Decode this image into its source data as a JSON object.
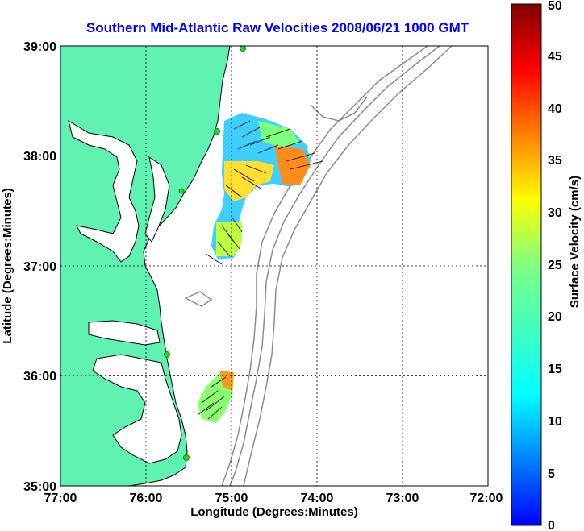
{
  "title": "Southern Mid-Atlantic Raw Velocities 2008/06/21 1000 GMT",
  "x_axis": {
    "label": "Longitude (Degrees:Minutes)",
    "ticks": [
      "77:00",
      "76:00",
      "75:00",
      "74:00",
      "73:00",
      "72:00"
    ],
    "range_deg": [
      -77,
      -72
    ]
  },
  "y_axis": {
    "label": "Latitude (Degrees:Minutes)",
    "ticks": [
      "39:00",
      "38:00",
      "37:00",
      "36:00",
      "35:00"
    ],
    "range_deg": [
      35,
      39
    ]
  },
  "colorbar": {
    "label": "Surface Velocity (cm/s)",
    "ticks": [
      "0",
      "5",
      "10",
      "15",
      "20",
      "25",
      "30",
      "35",
      "40",
      "45",
      "50"
    ],
    "range": [
      0,
      50
    ],
    "colormap": "jet"
  },
  "colors": {
    "land": "#5ff2b1",
    "ocean": "#ffffff",
    "bathymetry": "#8c8c8c",
    "coastline": "#000000",
    "grid": "#000000",
    "station": "#2fd02f",
    "title": "#0000ff"
  },
  "grid": "dotted"
}
